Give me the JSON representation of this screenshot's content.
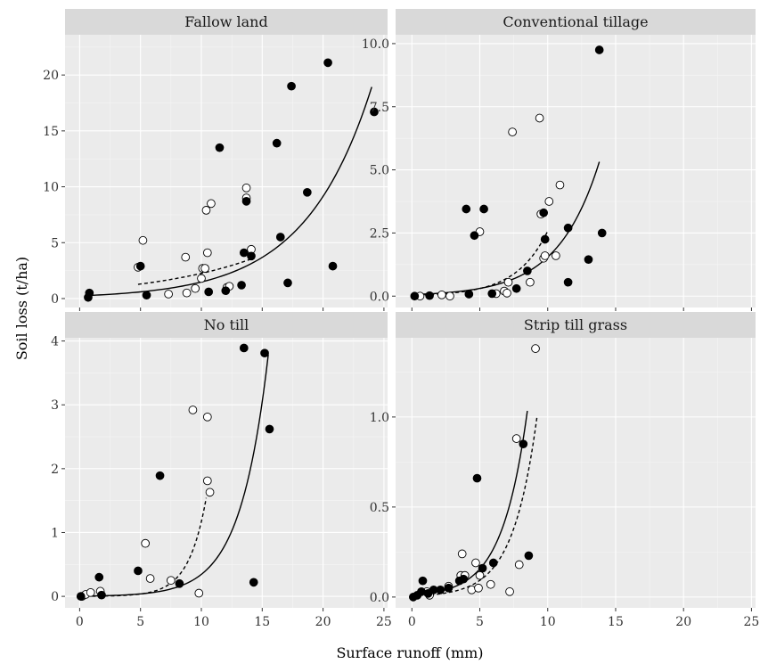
{
  "chart_data": {
    "type": "scatter",
    "xlabel": "Surface runoff (mm)",
    "ylabel": "Soil loss (t/ha)",
    "x_ticks": [
      "0",
      "5",
      "10",
      "15",
      "20",
      "25"
    ],
    "xlim": [
      -1.2,
      25.3
    ],
    "panels": [
      {
        "title": "Fallow land",
        "ylim": [
          -0.8,
          23.6
        ],
        "y_ticks": [
          {
            "v": 0,
            "t": "0"
          },
          {
            "v": 5,
            "t": "5"
          },
          {
            "v": 10,
            "t": "10"
          },
          {
            "v": 15,
            "t": "15"
          },
          {
            "v": 20,
            "t": "20"
          }
        ],
        "filled": [
          [
            0.7,
            0.1
          ],
          [
            0.8,
            0.5
          ],
          [
            5.0,
            2.9
          ],
          [
            5.5,
            0.3
          ],
          [
            10.6,
            0.6
          ],
          [
            11.5,
            13.5
          ],
          [
            12.0,
            0.7
          ],
          [
            13.3,
            1.2
          ],
          [
            13.5,
            4.1
          ],
          [
            13.7,
            8.7
          ],
          [
            14.1,
            3.8
          ],
          [
            16.2,
            13.9
          ],
          [
            16.5,
            5.5
          ],
          [
            17.1,
            1.4
          ],
          [
            17.4,
            19.0
          ],
          [
            18.7,
            9.5
          ],
          [
            20.4,
            21.1
          ],
          [
            20.8,
            2.9
          ],
          [
            24.2,
            16.7
          ]
        ],
        "open": [
          [
            4.8,
            2.8
          ],
          [
            5.2,
            5.2
          ],
          [
            7.3,
            0.4
          ],
          [
            8.7,
            3.7
          ],
          [
            8.8,
            0.5
          ],
          [
            9.5,
            0.9
          ],
          [
            10.0,
            1.8
          ],
          [
            10.1,
            2.7
          ],
          [
            10.3,
            2.7
          ],
          [
            10.4,
            7.9
          ],
          [
            10.5,
            4.1
          ],
          [
            10.8,
            8.5
          ],
          [
            12.1,
            1.0
          ],
          [
            12.3,
            1.1
          ],
          [
            13.7,
            9.9
          ],
          [
            13.7,
            9.0
          ],
          [
            14.1,
            4.4
          ]
        ],
        "fit_solid": {
          "a": 0.24,
          "b": 0.182,
          "x_range": [
            0.5,
            24
          ]
        },
        "fit_dashed": {
          "a": 0.75,
          "b": 0.11,
          "x_range": [
            4.8,
            14
          ]
        }
      },
      {
        "title": "Conventional tillage",
        "ylim": [
          -0.45,
          10.35
        ],
        "y_ticks": [
          {
            "v": 0,
            "t": "0.0"
          },
          {
            "v": 2.5,
            "t": "2.5"
          },
          {
            "v": 5,
            "t": "5.0"
          },
          {
            "v": 7.5,
            "t": "7.5"
          },
          {
            "v": 10,
            "t": "10.0"
          }
        ],
        "filled": [
          [
            0.2,
            0.0
          ],
          [
            1.3,
            0.02
          ],
          [
            4.0,
            3.45
          ],
          [
            4.2,
            0.08
          ],
          [
            4.6,
            2.4
          ],
          [
            5.3,
            3.45
          ],
          [
            5.9,
            0.1
          ],
          [
            7.7,
            0.3
          ],
          [
            8.5,
            1.0
          ],
          [
            9.7,
            3.3
          ],
          [
            9.8,
            2.25
          ],
          [
            11.5,
            2.7
          ],
          [
            11.5,
            0.55
          ],
          [
            13.0,
            1.45
          ],
          [
            13.8,
            9.75
          ],
          [
            14.0,
            2.5
          ]
        ],
        "open": [
          [
            0.6,
            0.0
          ],
          [
            2.2,
            0.05
          ],
          [
            2.8,
            0.0
          ],
          [
            5.0,
            2.55
          ],
          [
            6.2,
            0.1
          ],
          [
            6.8,
            0.2
          ],
          [
            7.0,
            0.12
          ],
          [
            7.1,
            0.55
          ],
          [
            7.4,
            6.5
          ],
          [
            8.7,
            0.55
          ],
          [
            9.4,
            7.05
          ],
          [
            9.5,
            3.25
          ],
          [
            9.7,
            1.5
          ],
          [
            9.8,
            1.6
          ],
          [
            10.1,
            3.75
          ],
          [
            10.6,
            1.6
          ],
          [
            10.9,
            4.4
          ]
        ],
        "fit_solid": {
          "a": 0.06,
          "b": 0.325,
          "x_range": [
            0,
            13.8
          ]
        },
        "fit_dashed": {
          "a": 0.035,
          "b": 0.43,
          "x_range": [
            0,
            10
          ]
        }
      },
      {
        "title": "No till",
        "ylim": [
          -0.18,
          4.05
        ],
        "y_ticks": [
          {
            "v": 0,
            "t": "0"
          },
          {
            "v": 1,
            "t": "1"
          },
          {
            "v": 2,
            "t": "2"
          },
          {
            "v": 3,
            "t": "3"
          },
          {
            "v": 4,
            "t": "4"
          }
        ],
        "filled": [
          [
            0.1,
            0.0
          ],
          [
            1.6,
            0.3
          ],
          [
            1.8,
            0.02
          ],
          [
            4.8,
            0.4
          ],
          [
            6.6,
            1.89
          ],
          [
            8.2,
            0.2
          ],
          [
            13.5,
            3.89
          ],
          [
            14.3,
            0.22
          ],
          [
            15.2,
            3.81
          ],
          [
            15.6,
            2.62
          ]
        ],
        "open": [
          [
            0.2,
            0.0
          ],
          [
            0.5,
            0.03
          ],
          [
            0.9,
            0.06
          ],
          [
            1.7,
            0.08
          ],
          [
            5.4,
            0.83
          ],
          [
            5.8,
            0.28
          ],
          [
            7.5,
            0.25
          ],
          [
            9.3,
            2.92
          ],
          [
            9.8,
            0.05
          ],
          [
            10.5,
            2.81
          ],
          [
            10.5,
            1.81
          ],
          [
            10.7,
            1.63
          ]
        ],
        "fit_solid": {
          "a": 0.0044,
          "b": 0.436,
          "x_range": [
            0,
            15.5
          ]
        },
        "fit_dashed": {
          "a": 0.00118,
          "b": 0.69,
          "x_range": [
            0,
            10.4
          ]
        }
      },
      {
        "title": "Strip till grass",
        "ylim": [
          -0.06,
          1.44
        ],
        "y_ticks": [
          {
            "v": 0,
            "t": "0.0"
          },
          {
            "v": 0.5,
            "t": "0.5"
          },
          {
            "v": 1,
            "t": "1.0"
          }
        ],
        "filled": [
          [
            0.1,
            0.0
          ],
          [
            0.4,
            0.01
          ],
          [
            0.7,
            0.03
          ],
          [
            0.8,
            0.09
          ],
          [
            1.2,
            0.02
          ],
          [
            1.6,
            0.04
          ],
          [
            2.1,
            0.04
          ],
          [
            2.7,
            0.05
          ],
          [
            3.5,
            0.09
          ],
          [
            3.8,
            0.1
          ],
          [
            4.8,
            0.66
          ],
          [
            5.2,
            0.16
          ],
          [
            6.0,
            0.19
          ],
          [
            8.2,
            0.85
          ],
          [
            8.6,
            0.23
          ]
        ],
        "open": [
          [
            1.1,
            0.03
          ],
          [
            1.3,
            0.01
          ],
          [
            2.7,
            0.06
          ],
          [
            3.6,
            0.12
          ],
          [
            3.7,
            0.24
          ],
          [
            3.9,
            0.12
          ],
          [
            4.4,
            0.04
          ],
          [
            4.7,
            0.19
          ],
          [
            4.9,
            0.05
          ],
          [
            5.0,
            0.12
          ],
          [
            5.8,
            0.07
          ],
          [
            7.2,
            0.03
          ],
          [
            7.7,
            0.88
          ],
          [
            7.9,
            0.18
          ],
          [
            9.1,
            1.38
          ]
        ],
        "fit_solid": {
          "a": 0.0105,
          "b": 0.54,
          "x_range": [
            0,
            8.5
          ]
        },
        "fit_dashed": {
          "a": 0.0055,
          "b": 0.565,
          "x_range": [
            0,
            9.2
          ]
        }
      }
    ]
  }
}
